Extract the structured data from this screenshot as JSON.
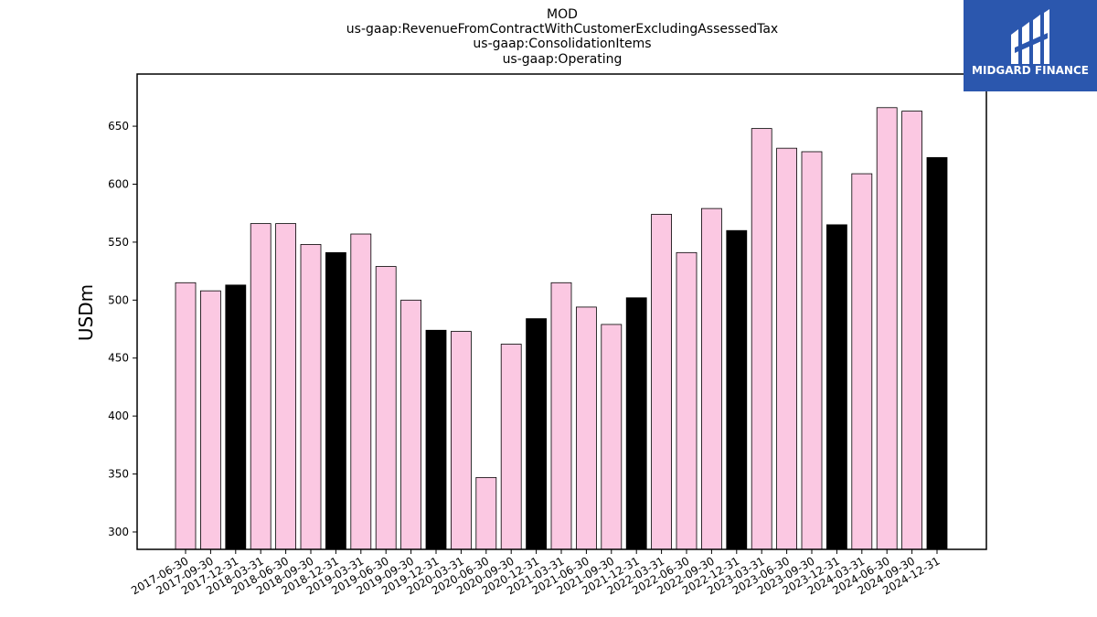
{
  "logo": {
    "text": "MIDGARD FINANCE",
    "bg_color": "#2b57ae"
  },
  "chart_data": {
    "type": "bar",
    "title_lines": [
      "MOD",
      "us-gaap:RevenueFromContractWithCustomerExcludingAssessedTax",
      "us-gaap:ConsolidationItems",
      "us-gaap:Operating"
    ],
    "xlabel": "",
    "ylabel": "USDm",
    "ylim": [
      285,
      695
    ],
    "yticks": [
      300,
      350,
      400,
      450,
      500,
      550,
      600,
      650
    ],
    "grid": false,
    "colors": {
      "quarter": "#fbc8e2",
      "year_end": "#000000",
      "edge": "#000000"
    },
    "categories": [
      "2017-06-30",
      "2017-09-30",
      "2017-12-31",
      "2018-03-31",
      "2018-06-30",
      "2018-09-30",
      "2018-12-31",
      "2019-03-31",
      "2019-06-30",
      "2019-09-30",
      "2019-12-31",
      "2020-03-31",
      "2020-06-30",
      "2020-09-30",
      "2020-12-31",
      "2021-03-31",
      "2021-06-30",
      "2021-09-30",
      "2021-12-31",
      "2022-03-31",
      "2022-06-30",
      "2022-09-30",
      "2022-12-31",
      "2023-03-31",
      "2023-06-30",
      "2023-09-30",
      "2023-12-31",
      "2024-03-31",
      "2024-06-30",
      "2024-09-30",
      "2024-12-31"
    ],
    "values": [
      515,
      508,
      513,
      566,
      566,
      548,
      541,
      557,
      529,
      500,
      474,
      473,
      347,
      462,
      484,
      515,
      494,
      479,
      502,
      574,
      541,
      579,
      560,
      648,
      631,
      628,
      565,
      609,
      666,
      663,
      623
    ]
  }
}
